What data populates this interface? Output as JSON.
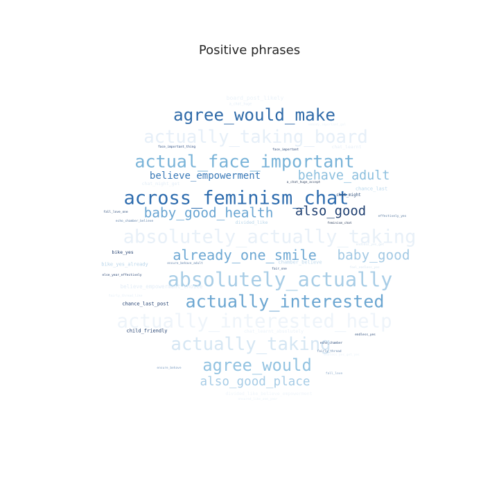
{
  "chart_data": {
    "type": "wordcloud",
    "title": "Positive phrases",
    "words": [
      {
        "text": "agree_would_make",
        "weight": 0.9,
        "color": "#2f6aa8"
      },
      {
        "text": "actually_taking_board",
        "weight": 0.95,
        "color": "#e6eff8"
      },
      {
        "text": "actual_face_important",
        "weight": 0.93,
        "color": "#79b3d8"
      },
      {
        "text": "believe_empowerment",
        "weight": 0.52,
        "color": "#3a79b7"
      },
      {
        "text": "behave_adult",
        "weight": 0.68,
        "color": "#8cbfde"
      },
      {
        "text": "across_feminism_chat",
        "weight": 1.0,
        "color": "#2e6cae"
      },
      {
        "text": "baby_good_health",
        "weight": 0.72,
        "color": "#6aa5d2"
      },
      {
        "text": "also_good",
        "weight": 0.7,
        "color": "#1f3f70"
      },
      {
        "text": "absolutely_actually_taking",
        "weight": 1.0,
        "color": "#e8f0f8"
      },
      {
        "text": "already_one_smile",
        "weight": 0.75,
        "color": "#6ea8d3"
      },
      {
        "text": "baby_good",
        "weight": 0.72,
        "color": "#a3c9e4"
      },
      {
        "text": "absolutely_actually",
        "weight": 1.05,
        "color": "#a8cde6"
      },
      {
        "text": "actually_interested",
        "weight": 0.93,
        "color": "#6ba6d1"
      },
      {
        "text": "actually_interested_help",
        "weight": 1.02,
        "color": "#eef4fa"
      },
      {
        "text": "actually_taking",
        "weight": 0.95,
        "color": "#d5e6f3"
      },
      {
        "text": "agree_would",
        "weight": 0.88,
        "color": "#93c3e1"
      },
      {
        "text": "also_good_place",
        "weight": 0.65,
        "color": "#a7cce6"
      },
      {
        "text": "board_post_likely",
        "weight": 0.3,
        "color": "#eaf2f9"
      },
      {
        "text": "a_chat_huge",
        "weight": 0.18,
        "color": "#e3edf7"
      },
      {
        "text": "face_important_thing",
        "weight": 0.16,
        "color": "#23467e"
      },
      {
        "text": "face_important",
        "weight": 0.16,
        "color": "#1f3d6e"
      },
      {
        "text": "chat_learnt",
        "weight": 0.24,
        "color": "#e6eff8"
      },
      {
        "text": "embody_important_gal",
        "weight": 0.16,
        "color": "#eaf2f9"
      },
      {
        "text": "chat_might_get",
        "weight": 0.24,
        "color": "#e3edf7"
      },
      {
        "text": "a_chat_huge_accept",
        "weight": 0.16,
        "color": "#2c3e5c"
      },
      {
        "text": "chance_last",
        "weight": 0.26,
        "color": "#b9d7ec"
      },
      {
        "text": "chat_might",
        "weight": 0.22,
        "color": "#2f4f7a"
      },
      {
        "text": "fall_love_one",
        "weight": 0.16,
        "color": "#2a4a78"
      },
      {
        "text": "echo_chamber_believe",
        "weight": 0.16,
        "color": "#5d7fa8"
      },
      {
        "text": "divided_like",
        "weight": 0.24,
        "color": "#b9d6ea"
      },
      {
        "text": "feminism_chat",
        "weight": 0.16,
        "color": "#2c3e5c"
      },
      {
        "text": "effectively_yes",
        "weight": 0.16,
        "color": "#56789f"
      },
      {
        "text": "endless_yes_get",
        "weight": 0.16,
        "color": "#d8e7f3"
      },
      {
        "text": "bike_yes",
        "weight": 0.24,
        "color": "#1f3d6e"
      },
      {
        "text": "bike_yes_already",
        "weight": 0.26,
        "color": "#b8d5ea"
      },
      {
        "text": "ensure_behave_adult",
        "weight": 0.16,
        "color": "#5d7fa8"
      },
      {
        "text": "chamber_believe",
        "weight": 0.26,
        "color": "#bdd8ec"
      },
      {
        "text": "fair_one",
        "weight": 0.16,
        "color": "#2a4a78"
      },
      {
        "text": "else_year_effectively",
        "weight": 0.16,
        "color": "#1f3d6e"
      },
      {
        "text": "feel_endless_yes",
        "weight": 0.16,
        "color": "#d8e7f3"
      },
      {
        "text": "believe_empowerment_choice",
        "weight": 0.28,
        "color": "#e3edf7"
      },
      {
        "text": "fairly_thread_like",
        "weight": 0.16,
        "color": "#e3edf7"
      },
      {
        "text": "chance_last_post",
        "weight": 0.26,
        "color": "#1f3d6e"
      },
      {
        "text": "chat_learnt_absolutely",
        "weight": 0.24,
        "color": "#eaf2f9"
      },
      {
        "text": "child_friendly",
        "weight": 0.26,
        "color": "#1f3d6e"
      },
      {
        "text": "endless_yes",
        "weight": 0.16,
        "color": "#2a4a78"
      },
      {
        "text": "echo_chamber",
        "weight": 0.16,
        "color": "#2a4a78"
      },
      {
        "text": "endless_yes_get_yes",
        "weight": 0.16,
        "color": "#eaf2f9"
      },
      {
        "text": "fairly_thread",
        "weight": 0.16,
        "color": "#5d7fa8"
      },
      {
        "text": "ensure_behave",
        "weight": 0.16,
        "color": "#7b9cc0"
      },
      {
        "text": "fall_love",
        "weight": 0.16,
        "color": "#8aa8c8"
      },
      {
        "text": "divided_like_believe_empowerment",
        "weight": 0.24,
        "color": "#eef4fa"
      },
      {
        "text": "ensured_like_one_year",
        "weight": 0.16,
        "color": "#eaf2f9"
      }
    ]
  }
}
